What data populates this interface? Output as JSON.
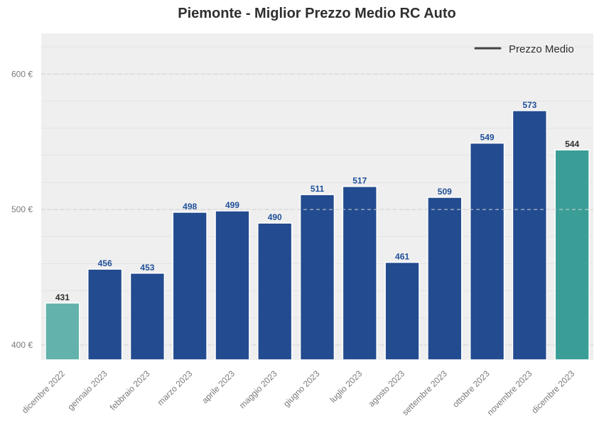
{
  "chart_data": {
    "type": "bar",
    "title": "Piemonte - Miglior Prezzo Medio RC Auto",
    "xlabel": "",
    "ylabel": "",
    "categories": [
      "dicembre 2022",
      "gennaio 2023",
      "febbraio 2023",
      "marzo 2023",
      "aprile 2023",
      "maggio 2023",
      "giugno 2023",
      "luglio 2023",
      "agosto 2023",
      "settembre 2023",
      "ottobre 2023",
      "novembre 2023",
      "dicembre 2023"
    ],
    "values": [
      431,
      456,
      453,
      498,
      499,
      490,
      511,
      517,
      461,
      509,
      549,
      573,
      544
    ],
    "ylim": [
      389,
      630
    ],
    "yticks": [
      400,
      500,
      600
    ],
    "ytick_labels": [
      "400 €",
      "500 €",
      "600 €"
    ],
    "reference_line": 500,
    "legend": {
      "label": "Prezzo Medio",
      "placement": "top-right"
    },
    "grid": true,
    "colors": {
      "bar": "#234b8f",
      "first_bar": "#63b2ab",
      "last_bar": "#3a9e97",
      "label_blue": "#1f4f9a",
      "label_dark": "#2f2f2f",
      "plot_bg": "#efefef",
      "legend_line": "#444444"
    }
  }
}
